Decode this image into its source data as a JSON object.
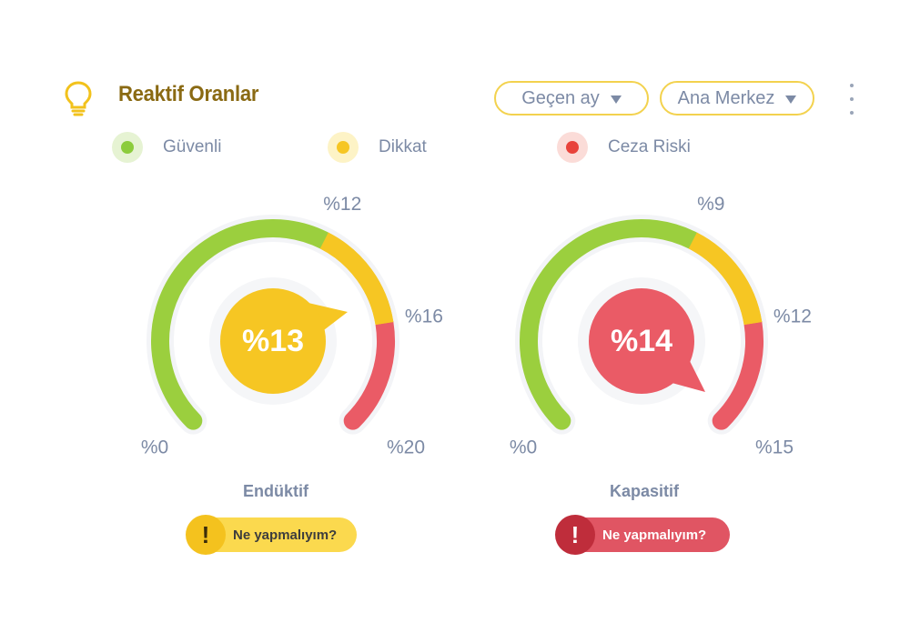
{
  "header": {
    "title": "Reaktif Oranlar",
    "period_dropdown": "Geçen ay",
    "center_dropdown": "Ana Merkez"
  },
  "legend": [
    {
      "label": "Güvenli",
      "color": "#8ccc3c",
      "halo": "#e6f3d3"
    },
    {
      "label": "Dikkat",
      "color": "#f6c623",
      "halo": "#fdf3c6"
    },
    {
      "label": "Ceza Riski",
      "color": "#e8433b",
      "halo": "#fbdcd8"
    }
  ],
  "colors": {
    "safe": "#9bcf3e",
    "warn": "#f6c623",
    "risk": "#ea5b66",
    "label": "#7c8aa5"
  },
  "gauges": [
    {
      "name": "Endüktif",
      "value_label": "%13",
      "value": 13,
      "max": 20,
      "thresholds": [
        12,
        16
      ],
      "bubble_color": "#f6c623",
      "tick_labels": [
        "%0",
        "%12",
        "%16",
        "%20"
      ],
      "action_label": "Ne yapmalıyım?",
      "action_icon": "!"
    },
    {
      "name": "Kapasitif",
      "value_label": "%14",
      "value": 14,
      "max": 15,
      "thresholds": [
        9,
        12
      ],
      "bubble_color": "#ea5b66",
      "tick_labels": [
        "%0",
        "%9",
        "%12",
        "%15"
      ],
      "action_label": "Ne yapmalıyım?",
      "action_icon": "!"
    }
  ]
}
